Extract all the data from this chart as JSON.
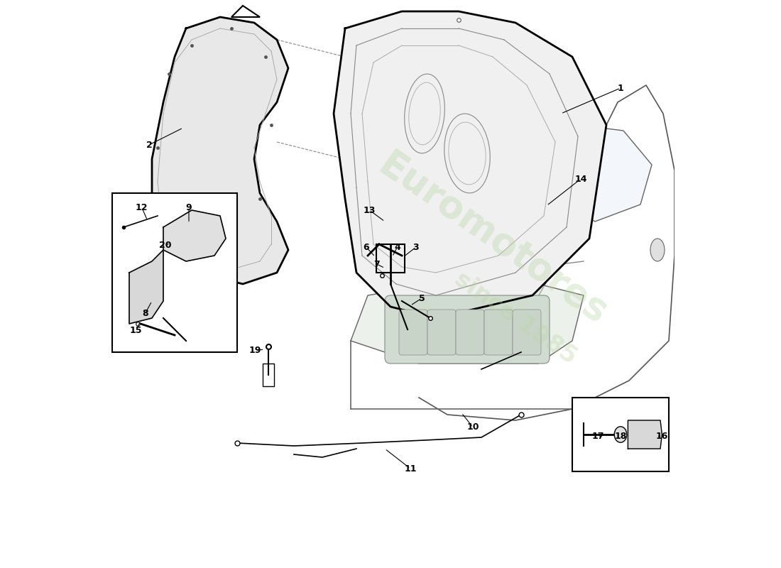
{
  "title": "",
  "background_color": "#ffffff",
  "line_color": "#000000",
  "light_line_color": "#cccccc",
  "watermark_color": "#d4e8c2",
  "watermark_text": "Euromotores",
  "watermark_subtext": "since 1985",
  "fig_width": 11.0,
  "fig_height": 8.0,
  "dpi": 100
}
